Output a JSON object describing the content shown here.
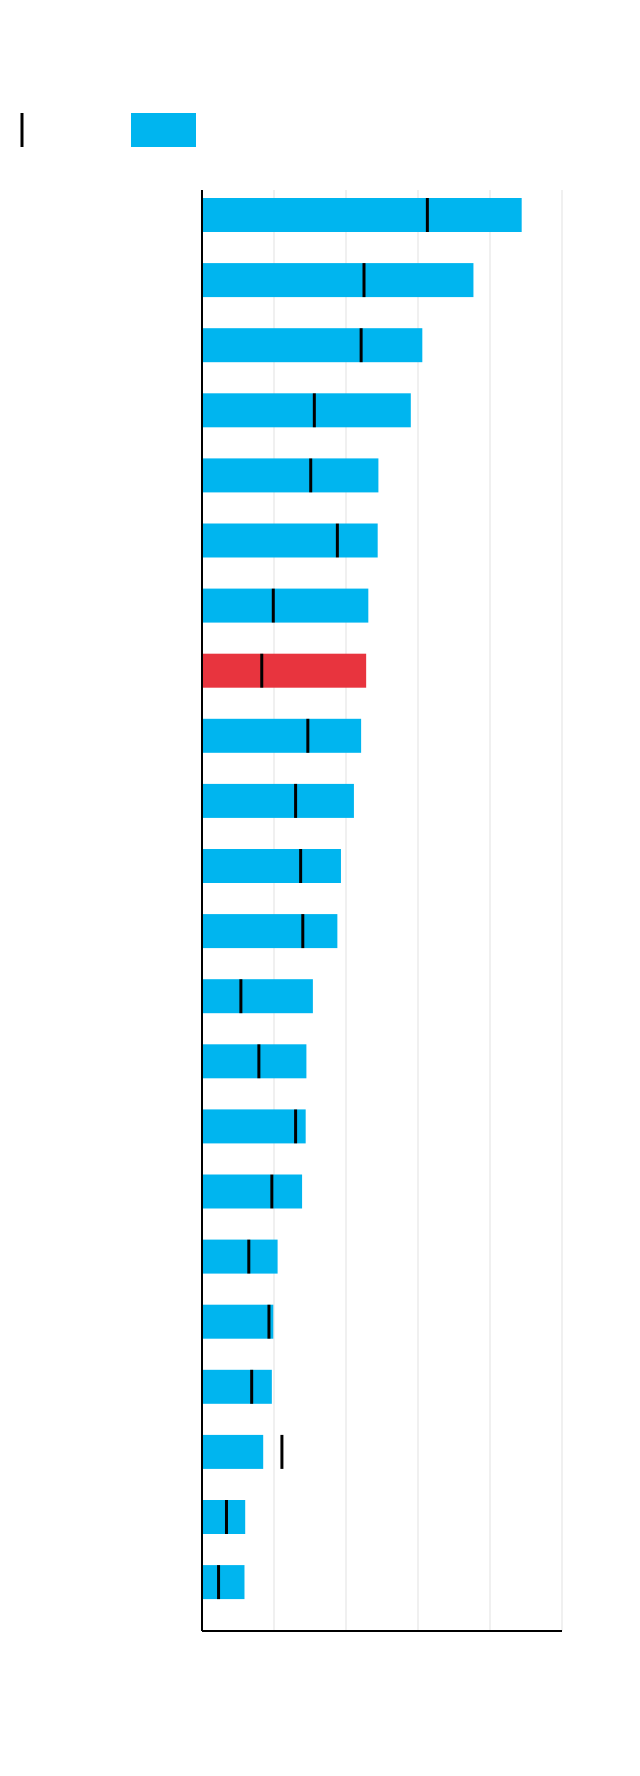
{
  "chart_data": {
    "type": "bar",
    "orientation": "horizontal",
    "categories": [
      null,
      null,
      null,
      null,
      null,
      null,
      null,
      null,
      null,
      null,
      null,
      null,
      null,
      null,
      null,
      null,
      null,
      null,
      null,
      null,
      null,
      null
    ],
    "series": [
      {
        "color": "#00b5ef",
        "style": "bar",
        "colors": [
          "#00b5ef",
          "#00b5ef",
          "#00b5ef",
          "#00b5ef",
          "#00b5ef",
          "#00b5ef",
          "#00b5ef",
          "#e8343e",
          "#00b5ef",
          "#00b5ef",
          "#00b5ef",
          "#00b5ef",
          "#00b5ef",
          "#00b5ef",
          "#00b5ef",
          "#00b5ef",
          "#00b5ef",
          "#00b5ef",
          "#00b5ef",
          "#00b5ef",
          "#00b5ef",
          "#00b5ef"
        ],
        "values": [
          4.44,
          3.77,
          3.06,
          2.9,
          2.45,
          2.44,
          2.31,
          2.28,
          2.21,
          2.11,
          1.93,
          1.88,
          1.54,
          1.45,
          1.44,
          1.39,
          1.05,
          0.99,
          0.97,
          0.85,
          0.6,
          0.59
        ]
      },
      {
        "color": "#000000",
        "style": "tick",
        "values": [
          3.13,
          2.25,
          2.21,
          1.56,
          1.51,
          1.88,
          0.99,
          0.83,
          1.47,
          1.3,
          1.37,
          1.4,
          0.54,
          0.79,
          1.3,
          0.97,
          0.65,
          0.93,
          0.69,
          1.11,
          0.34,
          0.23
        ]
      }
    ],
    "xlim": [
      0,
      5
    ],
    "xticks": [
      0,
      1,
      2,
      3,
      4,
      5
    ],
    "grid": true
  }
}
